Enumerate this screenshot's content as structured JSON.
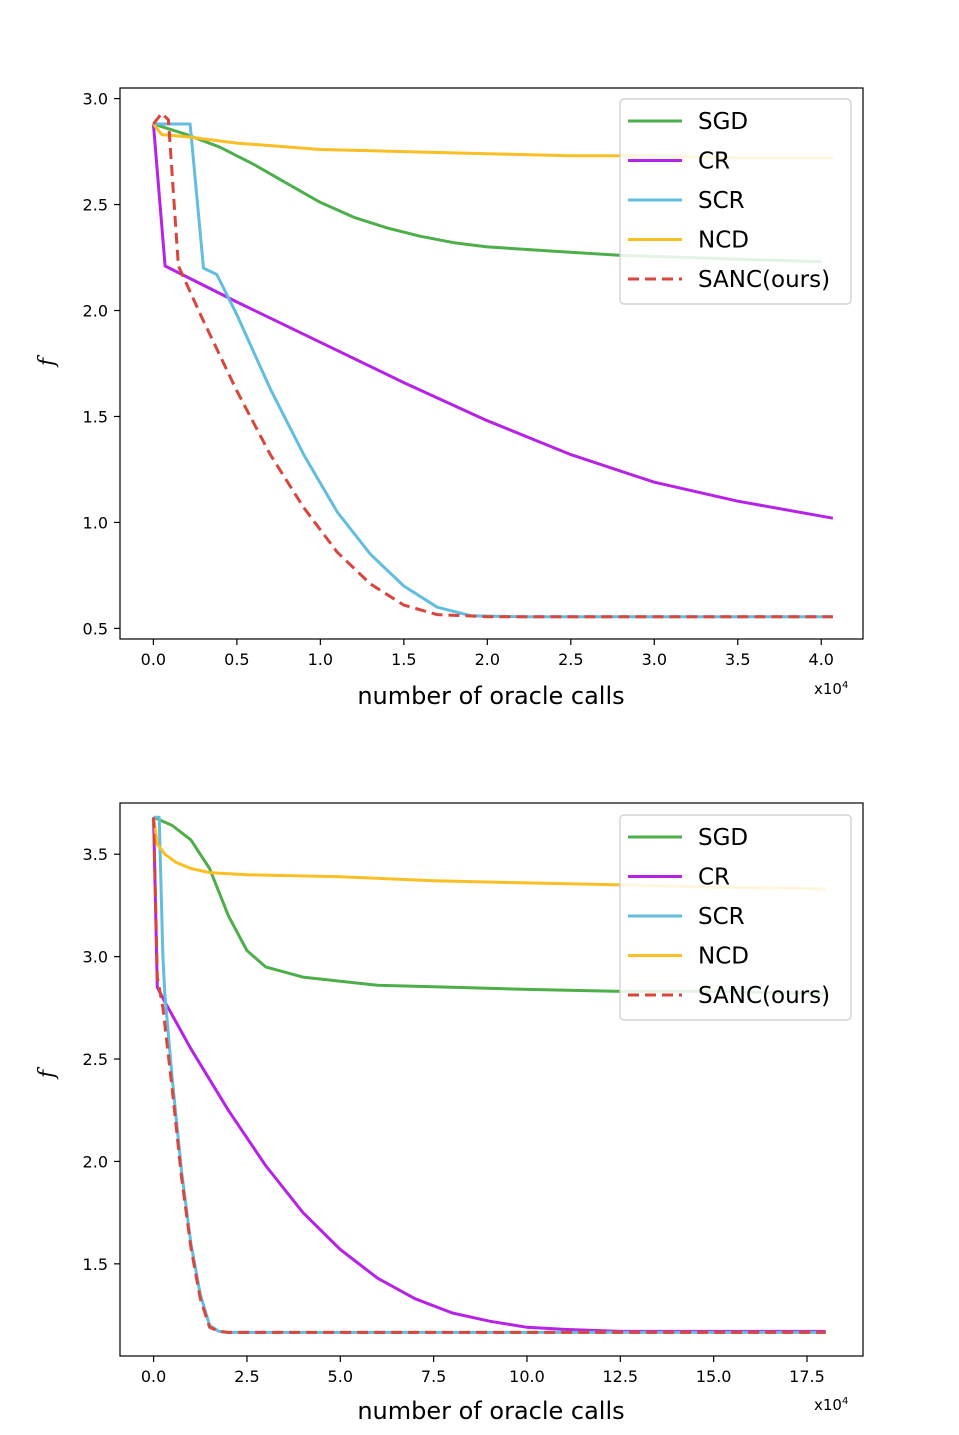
{
  "chart_data": [
    {
      "type": "line",
      "xlabel": "number of oracle calls",
      "ylabel": "f",
      "x_multiplier_label": "x10",
      "x_multiplier_exponent": "4",
      "xlim": [
        -0.2,
        4.25
      ],
      "ylim": [
        0.45,
        3.05
      ],
      "xticks": [
        0.0,
        0.5,
        1.0,
        1.5,
        2.0,
        2.5,
        3.0,
        3.5,
        4.0
      ],
      "xtick_labels": [
        "0.0",
        "0.5",
        "1.0",
        "1.5",
        "2.0",
        "2.5",
        "3.0",
        "3.5",
        "4.0"
      ],
      "yticks": [
        0.5,
        1.0,
        1.5,
        2.0,
        2.5,
        3.0
      ],
      "ytick_labels": [
        "0.5",
        "1.0",
        "1.5",
        "2.0",
        "2.5",
        "3.0"
      ],
      "legend_position": "top-right",
      "series": [
        {
          "name": "SGD",
          "color": "#4daf4a",
          "dash": "solid",
          "x": [
            0,
            0.2,
            0.4,
            0.6,
            0.8,
            1.0,
            1.2,
            1.4,
            1.6,
            1.8,
            2.0,
            2.4,
            2.8,
            3.2,
            3.6,
            4.0
          ],
          "y": [
            2.88,
            2.83,
            2.77,
            2.69,
            2.6,
            2.51,
            2.44,
            2.39,
            2.35,
            2.32,
            2.3,
            2.28,
            2.26,
            2.25,
            2.24,
            2.23
          ]
        },
        {
          "name": "CR",
          "color": "#b623e6",
          "dash": "solid",
          "x": [
            0,
            0.07,
            0.5,
            1.0,
            1.5,
            2.0,
            2.5,
            3.0,
            3.5,
            4.07
          ],
          "y": [
            2.88,
            2.21,
            2.04,
            1.85,
            1.66,
            1.48,
            1.32,
            1.19,
            1.1,
            1.02
          ]
        },
        {
          "name": "SCR",
          "color": "#5bc0de",
          "dash": "solid",
          "x": [
            0,
            0.22,
            0.3,
            0.38,
            0.5,
            0.7,
            0.9,
            1.1,
            1.3,
            1.5,
            1.7,
            1.9,
            2.2,
            3.0,
            4.07
          ],
          "y": [
            2.88,
            2.88,
            2.2,
            2.17,
            1.98,
            1.63,
            1.32,
            1.05,
            0.85,
            0.7,
            0.6,
            0.56,
            0.555,
            0.555,
            0.555
          ],
          "draw_color": "#62bde0"
        },
        {
          "name": "NCD",
          "color": "#fdbf2a",
          "dash": "solid",
          "x": [
            0,
            0.05,
            0.2,
            0.5,
            1.0,
            1.5,
            2.0,
            2.5,
            3.0,
            3.5,
            4.07
          ],
          "y": [
            2.88,
            2.83,
            2.82,
            2.79,
            2.76,
            2.75,
            2.74,
            2.73,
            2.73,
            2.72,
            2.72
          ],
          "draw_color": "#fbbf24"
        },
        {
          "name": "SANC(ours)",
          "color": "#d9463b",
          "dash": "dashed",
          "x": [
            0,
            0.05,
            0.09,
            0.15,
            0.3,
            0.5,
            0.7,
            0.9,
            1.1,
            1.3,
            1.5,
            1.7,
            2.0,
            3.0,
            4.07
          ],
          "y": [
            2.88,
            2.93,
            2.9,
            2.21,
            1.95,
            1.62,
            1.32,
            1.07,
            0.86,
            0.71,
            0.61,
            0.565,
            0.555,
            0.555,
            0.555
          ]
        }
      ]
    },
    {
      "type": "line",
      "xlabel": "number of oracle calls",
      "ylabel": "f",
      "x_multiplier_label": "x10",
      "x_multiplier_exponent": "4",
      "xlim": [
        -0.9,
        19.0
      ],
      "ylim": [
        1.05,
        3.75
      ],
      "xticks": [
        0.0,
        2.5,
        5.0,
        7.5,
        10.0,
        12.5,
        15.0,
        17.5
      ],
      "xtick_labels": [
        "0.0",
        "2.5",
        "5.0",
        "7.5",
        "10.0",
        "12.5",
        "15.0",
        "17.5"
      ],
      "yticks": [
        1.5,
        2.0,
        2.5,
        3.0,
        3.5
      ],
      "ytick_labels": [
        "1.5",
        "2.0",
        "2.5",
        "3.0",
        "3.5"
      ],
      "legend_position": "top-right",
      "series": [
        {
          "name": "SGD",
          "color": "#4daf4a",
          "dash": "solid",
          "x": [
            0,
            0.5,
            1.0,
            1.5,
            2.0,
            2.5,
            3.0,
            4.0,
            5.0,
            6.0,
            8.0,
            10.0,
            12.5,
            15.0,
            18.0
          ],
          "y": [
            3.68,
            3.64,
            3.57,
            3.43,
            3.2,
            3.03,
            2.95,
            2.9,
            2.88,
            2.86,
            2.85,
            2.84,
            2.83,
            2.83,
            2.82
          ]
        },
        {
          "name": "CR",
          "color": "#b623e6",
          "dash": "solid",
          "x": [
            0,
            0.1,
            0.3,
            1.0,
            2.0,
            3.0,
            4.0,
            5.0,
            6.0,
            7.0,
            8.0,
            9.0,
            10.0,
            11.0,
            12.5,
            15.0,
            18.0
          ],
          "y": [
            3.68,
            2.85,
            2.78,
            2.55,
            2.25,
            1.98,
            1.75,
            1.57,
            1.43,
            1.33,
            1.26,
            1.22,
            1.19,
            1.18,
            1.17,
            1.17,
            1.17
          ]
        },
        {
          "name": "SCR",
          "color": "#5bc0de",
          "dash": "solid",
          "x": [
            0,
            0.15,
            0.25,
            0.3,
            0.5,
            0.75,
            1.0,
            1.25,
            1.5,
            1.75,
            2.0,
            5.0,
            10.0,
            18.0
          ],
          "y": [
            3.68,
            3.68,
            3.0,
            2.82,
            2.4,
            1.95,
            1.6,
            1.35,
            1.2,
            1.17,
            1.165,
            1.165,
            1.165,
            1.165
          ],
          "draw_color": "#62bde0"
        },
        {
          "name": "NCD",
          "color": "#fdbf2a",
          "dash": "solid",
          "x": [
            0,
            0.1,
            0.3,
            0.6,
            1.0,
            1.5,
            2.5,
            5.0,
            7.5,
            10.0,
            12.5,
            15.0,
            18.0
          ],
          "y": [
            3.68,
            3.55,
            3.5,
            3.46,
            3.43,
            3.41,
            3.4,
            3.39,
            3.37,
            3.36,
            3.35,
            3.34,
            3.33
          ],
          "draw_color": "#fbbf24"
        },
        {
          "name": "SANC(ours)",
          "color": "#d9463b",
          "dash": "dashed",
          "x": [
            0,
            0.1,
            0.25,
            0.5,
            0.75,
            1.0,
            1.25,
            1.5,
            1.75,
            2.0,
            5.0,
            10.0,
            18.0
          ],
          "y": [
            3.68,
            2.9,
            2.75,
            2.35,
            1.92,
            1.58,
            1.33,
            1.19,
            1.17,
            1.165,
            1.165,
            1.165,
            1.165
          ]
        }
      ]
    }
  ]
}
